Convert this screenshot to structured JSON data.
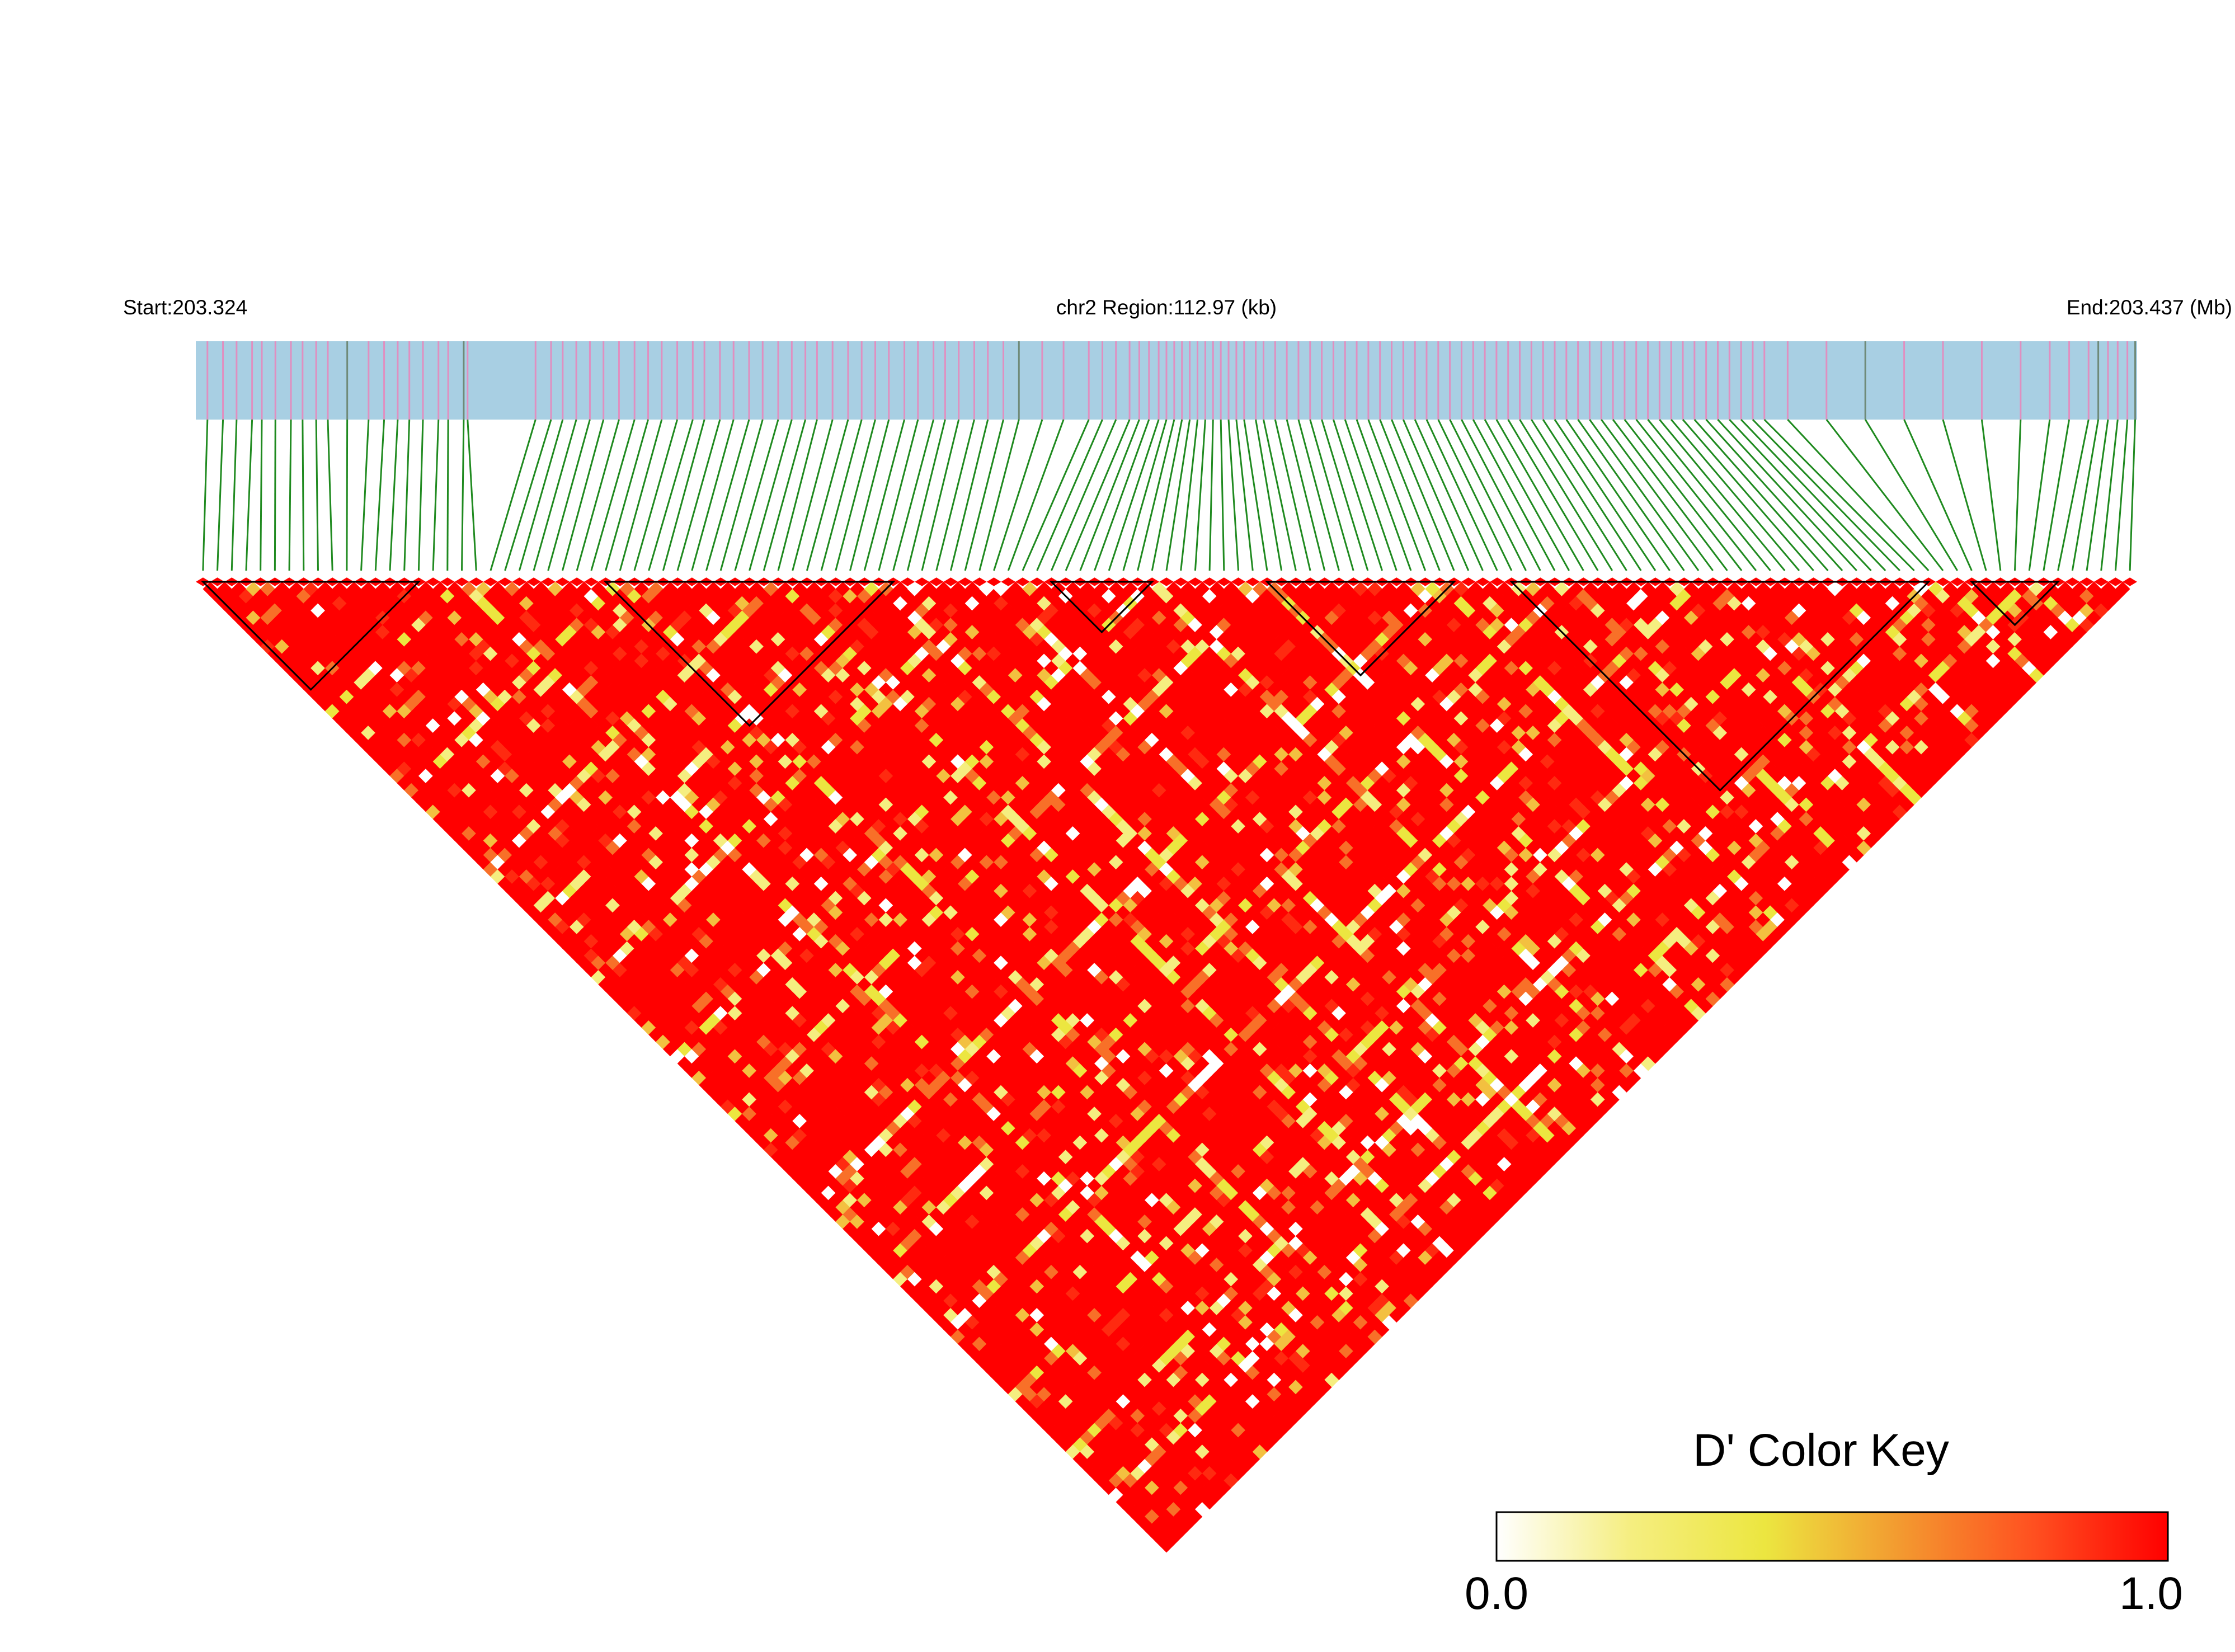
{
  "header": {
    "start_label": "Start:203.324",
    "region_label": "chr2 Region:112.97 (kb)",
    "end_label": "End:203.437 (Mb)"
  },
  "colors": {
    "track_background": "#a8cfe3",
    "snp_mark": "#e08fc0",
    "snp_mark_alt": "#6f8a78",
    "connector": "#1f8a1f",
    "ld_high": "#ff0000",
    "ld_mid": "#f0e040",
    "ld_low": "#ffffff",
    "block_outline": "#000000"
  },
  "color_key": {
    "title": "D' Color Key",
    "min_label": "0.0",
    "max_label": "1.0",
    "stops": [
      "#ffffff",
      "#f5ee80",
      "#ece640",
      "#f39a30",
      "#ff5020",
      "#ff0000"
    ]
  },
  "snps": {
    "count": 135,
    "marks": [
      {
        "pos": 0.006,
        "pink": true
      },
      {
        "pos": 0.014,
        "pink": true
      },
      {
        "pos": 0.021,
        "pink": true
      },
      {
        "pos": 0.029,
        "pink": true
      },
      {
        "pos": 0.034,
        "pink": true
      },
      {
        "pos": 0.041,
        "pink": true
      },
      {
        "pos": 0.049,
        "pink": true
      },
      {
        "pos": 0.055,
        "pink": true
      },
      {
        "pos": 0.062,
        "pink": true
      },
      {
        "pos": 0.068,
        "pink": true
      },
      {
        "pos": 0.078,
        "pink": false
      },
      {
        "pos": 0.089,
        "pink": true
      },
      {
        "pos": 0.097,
        "pink": true
      },
      {
        "pos": 0.104,
        "pink": true
      },
      {
        "pos": 0.11,
        "pink": true
      },
      {
        "pos": 0.117,
        "pink": true
      },
      {
        "pos": 0.125,
        "pink": true
      },
      {
        "pos": 0.13,
        "pink": true
      },
      {
        "pos": 0.138,
        "pink": false
      },
      {
        "pos": 0.14,
        "pink": true
      },
      {
        "pos": 0.175,
        "pink": true
      },
      {
        "pos": 0.183,
        "pink": true
      },
      {
        "pos": 0.189,
        "pink": true
      },
      {
        "pos": 0.196,
        "pink": true
      },
      {
        "pos": 0.203,
        "pink": true
      },
      {
        "pos": 0.21,
        "pink": true
      },
      {
        "pos": 0.218,
        "pink": true
      },
      {
        "pos": 0.226,
        "pink": true
      },
      {
        "pos": 0.233,
        "pink": true
      },
      {
        "pos": 0.24,
        "pink": true
      },
      {
        "pos": 0.248,
        "pink": true
      },
      {
        "pos": 0.256,
        "pink": true
      },
      {
        "pos": 0.262,
        "pink": true
      },
      {
        "pos": 0.27,
        "pink": true
      },
      {
        "pos": 0.277,
        "pink": true
      },
      {
        "pos": 0.285,
        "pink": true
      },
      {
        "pos": 0.292,
        "pink": true
      },
      {
        "pos": 0.3,
        "pink": true
      },
      {
        "pos": 0.307,
        "pink": true
      },
      {
        "pos": 0.314,
        "pink": true
      },
      {
        "pos": 0.32,
        "pink": true
      },
      {
        "pos": 0.328,
        "pink": true
      },
      {
        "pos": 0.336,
        "pink": true
      },
      {
        "pos": 0.343,
        "pink": true
      },
      {
        "pos": 0.35,
        "pink": true
      },
      {
        "pos": 0.357,
        "pink": true
      },
      {
        "pos": 0.365,
        "pink": true
      },
      {
        "pos": 0.372,
        "pink": true
      },
      {
        "pos": 0.38,
        "pink": true
      },
      {
        "pos": 0.386,
        "pink": true
      },
      {
        "pos": 0.393,
        "pink": true
      },
      {
        "pos": 0.401,
        "pink": true
      },
      {
        "pos": 0.408,
        "pink": true
      },
      {
        "pos": 0.416,
        "pink": true
      },
      {
        "pos": 0.424,
        "pink": false
      },
      {
        "pos": 0.436,
        "pink": true
      },
      {
        "pos": 0.447,
        "pink": true
      },
      {
        "pos": 0.46,
        "pink": true
      },
      {
        "pos": 0.467,
        "pink": true
      },
      {
        "pos": 0.474,
        "pink": true
      },
      {
        "pos": 0.481,
        "pink": true
      },
      {
        "pos": 0.486,
        "pink": true
      },
      {
        "pos": 0.491,
        "pink": true
      },
      {
        "pos": 0.496,
        "pink": true
      },
      {
        "pos": 0.5,
        "pink": true
      },
      {
        "pos": 0.504,
        "pink": true
      },
      {
        "pos": 0.508,
        "pink": true
      },
      {
        "pos": 0.512,
        "pink": true
      },
      {
        "pos": 0.516,
        "pink": true
      },
      {
        "pos": 0.52,
        "pink": true
      },
      {
        "pos": 0.524,
        "pink": true
      },
      {
        "pos": 0.528,
        "pink": true
      },
      {
        "pos": 0.532,
        "pink": true
      },
      {
        "pos": 0.536,
        "pink": true
      },
      {
        "pos": 0.54,
        "pink": true
      },
      {
        "pos": 0.546,
        "pink": true
      },
      {
        "pos": 0.55,
        "pink": true
      },
      {
        "pos": 0.556,
        "pink": true
      },
      {
        "pos": 0.562,
        "pink": true
      },
      {
        "pos": 0.568,
        "pink": true
      },
      {
        "pos": 0.574,
        "pink": true
      },
      {
        "pos": 0.58,
        "pink": true
      },
      {
        "pos": 0.586,
        "pink": true
      },
      {
        "pos": 0.592,
        "pink": true
      },
      {
        "pos": 0.598,
        "pink": true
      },
      {
        "pos": 0.604,
        "pink": true
      },
      {
        "pos": 0.61,
        "pink": true
      },
      {
        "pos": 0.616,
        "pink": true
      },
      {
        "pos": 0.622,
        "pink": true
      },
      {
        "pos": 0.628,
        "pink": true
      },
      {
        "pos": 0.634,
        "pink": true
      },
      {
        "pos": 0.64,
        "pink": true
      },
      {
        "pos": 0.646,
        "pink": true
      },
      {
        "pos": 0.652,
        "pink": true
      },
      {
        "pos": 0.658,
        "pink": true
      },
      {
        "pos": 0.664,
        "pink": true
      },
      {
        "pos": 0.67,
        "pink": true
      },
      {
        "pos": 0.676,
        "pink": true
      },
      {
        "pos": 0.682,
        "pink": true
      },
      {
        "pos": 0.688,
        "pink": true
      },
      {
        "pos": 0.694,
        "pink": true
      },
      {
        "pos": 0.7,
        "pink": true
      },
      {
        "pos": 0.706,
        "pink": true
      },
      {
        "pos": 0.712,
        "pink": true
      },
      {
        "pos": 0.718,
        "pink": true
      },
      {
        "pos": 0.724,
        "pink": true
      },
      {
        "pos": 0.73,
        "pink": true
      },
      {
        "pos": 0.736,
        "pink": true
      },
      {
        "pos": 0.742,
        "pink": true
      },
      {
        "pos": 0.748,
        "pink": true
      },
      {
        "pos": 0.754,
        "pink": true
      },
      {
        "pos": 0.76,
        "pink": true
      },
      {
        "pos": 0.766,
        "pink": true
      },
      {
        "pos": 0.772,
        "pink": true
      },
      {
        "pos": 0.778,
        "pink": true
      },
      {
        "pos": 0.784,
        "pink": true
      },
      {
        "pos": 0.79,
        "pink": true
      },
      {
        "pos": 0.796,
        "pink": true
      },
      {
        "pos": 0.802,
        "pink": true
      },
      {
        "pos": 0.808,
        "pink": true
      },
      {
        "pos": 0.82,
        "pink": true
      },
      {
        "pos": 0.84,
        "pink": true
      },
      {
        "pos": 0.86,
        "pink": false
      },
      {
        "pos": 0.88,
        "pink": true
      },
      {
        "pos": 0.9,
        "pink": true
      },
      {
        "pos": 0.92,
        "pink": true
      },
      {
        "pos": 0.94,
        "pink": true
      },
      {
        "pos": 0.955,
        "pink": true
      },
      {
        "pos": 0.965,
        "pink": true
      },
      {
        "pos": 0.975,
        "pink": true
      },
      {
        "pos": 0.98,
        "pink": false
      },
      {
        "pos": 0.985,
        "pink": true
      },
      {
        "pos": 0.99,
        "pink": true
      },
      {
        "pos": 0.995,
        "pink": true
      },
      {
        "pos": 0.999,
        "pink": false
      }
    ]
  },
  "ld_blocks": [
    {
      "from": 0,
      "to": 15
    },
    {
      "from": 28,
      "to": 48
    },
    {
      "from": 59,
      "to": 66
    },
    {
      "from": 74,
      "to": 87
    },
    {
      "from": 91,
      "to": 120
    },
    {
      "from": 123,
      "to": 129
    }
  ]
}
